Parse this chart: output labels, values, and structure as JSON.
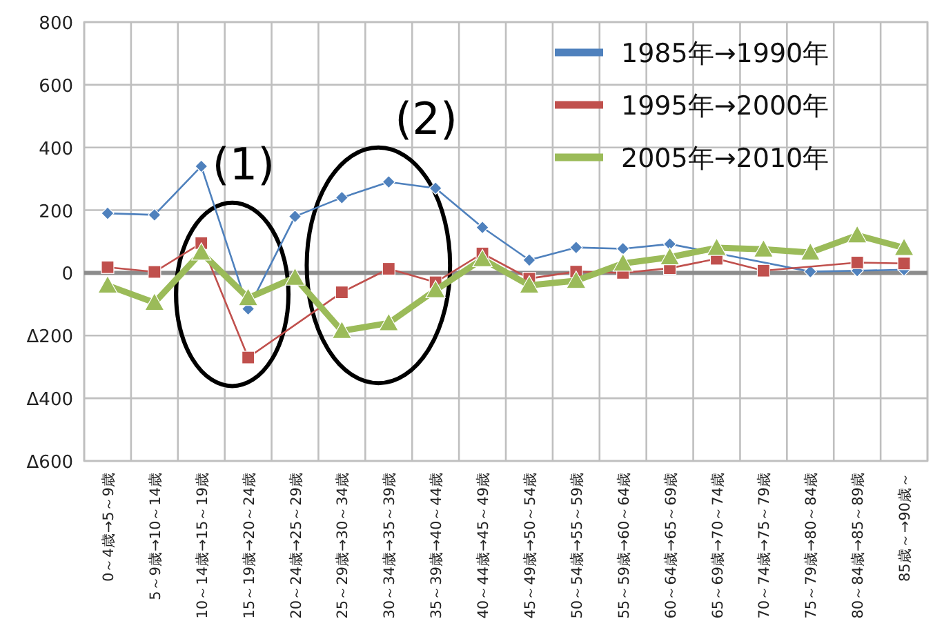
{
  "chart_data": {
    "type": "line",
    "categories": [
      "0～4歳→5～9歳",
      "5～9歳→10～14歳",
      "10～14歳→15～19歳",
      "15～19歳→20～24歳",
      "20～24歳→25～29歳",
      "25～29歳→30～34歳",
      "30～34歳→35～39歳",
      "35～39歳→40～44歳",
      "40～44歳→45～49歳",
      "45～49歳→50～54歳",
      "50～54歳→55～59歳",
      "55～59歳→60～64歳",
      "60～64歳→65～69歳",
      "65～69歳→70～74歳",
      "70～74歳→75～79歳",
      "75～79歳→80～84歳",
      "80～84歳→85～89歳",
      "85歳～→90歳～"
    ],
    "series": [
      {
        "name": "1985年→1990年",
        "color": "#4f81bd",
        "marker": "diamond",
        "values": [
          190,
          185,
          340,
          -115,
          180,
          240,
          290,
          270,
          145,
          41,
          81,
          77,
          92,
          null,
          null,
          4,
          7,
          10
        ]
      },
      {
        "name": "1995年→2000年",
        "color": "#c0504d",
        "marker": "square",
        "values": [
          18,
          3,
          95,
          -270,
          null,
          -62,
          13,
          -30,
          62,
          -18,
          4,
          0,
          15,
          45,
          7,
          null,
          33,
          30
        ]
      },
      {
        "name": "2005年→2010年",
        "color": "#9bbb59",
        "marker": "triangle",
        "values": [
          -40,
          -95,
          65,
          -80,
          -15,
          -185,
          -160,
          -55,
          44,
          -40,
          -25,
          30,
          50,
          80,
          75,
          65,
          120,
          80
        ]
      }
    ],
    "ylim": [
      -600,
      800
    ],
    "yticks": [
      800,
      600,
      400,
      200,
      0,
      {
        "value": -200,
        "label": "Δ200"
      },
      {
        "value": -400,
        "label": "Δ400"
      },
      {
        "value": -600,
        "label": "Δ600"
      }
    ],
    "grid": true,
    "legend": "top right",
    "annotations": [
      "(1)",
      "(2)"
    ]
  }
}
